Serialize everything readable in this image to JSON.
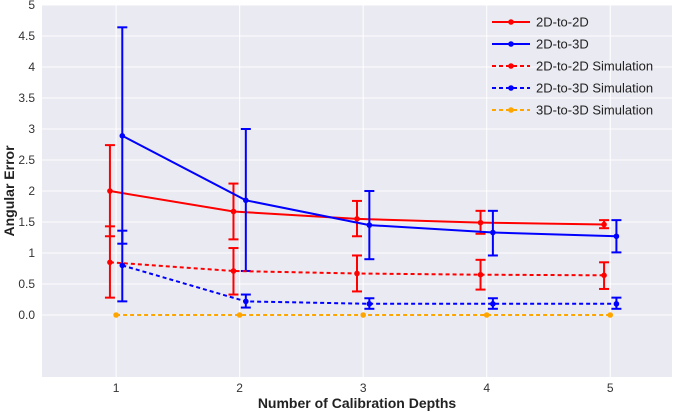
{
  "chart_data": {
    "type": "line",
    "title": "",
    "xlabel": "Number of Calibration Depths",
    "ylabel": "Angular Error",
    "xlim": [
      0.4,
      5.5
    ],
    "ylim": [
      -1.0,
      5.0
    ],
    "xticks": [
      1,
      2,
      3,
      4,
      5
    ],
    "xtick_labels": [
      "1",
      "2",
      "3",
      "4",
      "5"
    ],
    "yticks": [
      0.0,
      0.5,
      1.0,
      1.5,
      2.0,
      2.5,
      3.0,
      3.5,
      4.0,
      4.5,
      5.0
    ],
    "ytick_labels": [
      "0.0",
      "0.5",
      "1",
      "1.5",
      "2",
      "2.5",
      "3",
      "3.5",
      "4",
      "4.5",
      "5"
    ],
    "grid": true,
    "legend_position": "top-right",
    "series": [
      {
        "name": "2D-to-2D",
        "color": "#ff0000",
        "style": "solid",
        "x": [
          0.95,
          1.95,
          2.95,
          3.95,
          4.95
        ],
        "y": [
          2.0,
          1.67,
          1.55,
          1.49,
          1.46
        ],
        "yerr_low": [
          1.27,
          1.22,
          1.27,
          1.31,
          1.4
        ],
        "yerr_high": [
          2.74,
          2.12,
          1.84,
          1.68,
          1.53
        ]
      },
      {
        "name": "2D-to-3D",
        "color": "#0000ff",
        "style": "solid",
        "x": [
          1.05,
          2.05,
          3.05,
          4.05,
          5.05
        ],
        "y": [
          2.89,
          1.85,
          1.45,
          1.33,
          1.27
        ],
        "yerr_low": [
          1.15,
          0.71,
          0.9,
          0.96,
          1.01
        ],
        "yerr_high": [
          4.64,
          3.0,
          2.0,
          1.68,
          1.53
        ]
      },
      {
        "name": "2D-to-2D Simulation",
        "color": "#ff0000",
        "style": "dashed",
        "x": [
          0.95,
          1.95,
          2.95,
          3.95,
          4.95
        ],
        "y": [
          0.85,
          0.71,
          0.67,
          0.65,
          0.64
        ],
        "yerr_low": [
          0.28,
          0.33,
          0.38,
          0.41,
          0.42
        ],
        "yerr_high": [
          1.43,
          1.08,
          0.96,
          0.89,
          0.85
        ]
      },
      {
        "name": "2D-to-3D Simulation",
        "color": "#0000ff",
        "style": "dashed",
        "x": [
          1.05,
          2.05,
          3.05,
          4.05,
          5.05
        ],
        "y": [
          0.8,
          0.22,
          0.18,
          0.18,
          0.18
        ],
        "yerr_low": [
          0.22,
          0.12,
          0.1,
          0.1,
          0.1
        ],
        "yerr_high": [
          1.36,
          0.33,
          0.27,
          0.27,
          0.28
        ]
      },
      {
        "name": "3D-to-3D Simulation",
        "color": "#ffa500",
        "style": "dashed",
        "x": [
          1.0,
          2.0,
          3.0,
          4.0,
          5.0
        ],
        "y": [
          0.0,
          0.0,
          0.0,
          0.0,
          0.0
        ],
        "yerr_low": [
          0.0,
          0.0,
          0.0,
          0.0,
          0.0
        ],
        "yerr_high": [
          0.0,
          0.0,
          0.0,
          0.0,
          0.0
        ]
      }
    ]
  }
}
